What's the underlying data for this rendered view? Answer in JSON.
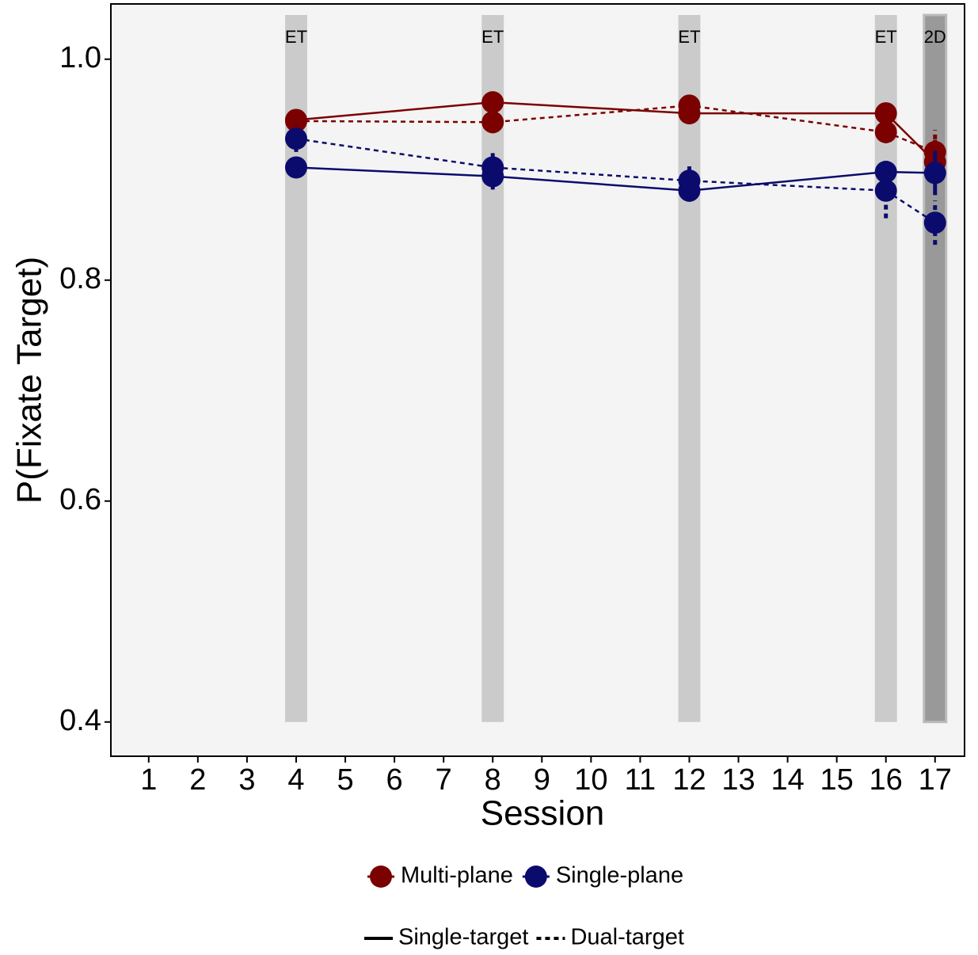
{
  "chart_data": {
    "type": "line",
    "x_label": "Session",
    "y_label": "P(Fixate Target)",
    "x": [
      4,
      8,
      12,
      16,
      17
    ],
    "xlim": [
      0.23,
      17.6
    ],
    "xticks": [
      1,
      2,
      3,
      4,
      5,
      6,
      7,
      8,
      9,
      10,
      11,
      12,
      13,
      14,
      15,
      16,
      17
    ],
    "ylim": [
      0.369,
      1.05
    ],
    "yticks": [
      0.4,
      0.6,
      0.8,
      {
        "value": 1,
        "label": "1.0"
      }
    ],
    "grid": false,
    "bands": [
      {
        "x": 4,
        "label": "ET",
        "color": "#cbcbcb"
      },
      {
        "x": 8,
        "label": "ET",
        "color": "#cbcbcb"
      },
      {
        "x": 12,
        "label": "ET",
        "color": "#cbcbcb"
      },
      {
        "x": 16,
        "label": "ET",
        "color": "#cbcbcb"
      },
      {
        "x": 17,
        "label": "2D",
        "color": "#999999"
      }
    ],
    "band_range": [
      0.4,
      1.04
    ],
    "color_legend": [
      {
        "name": "Multi-plane",
        "color": "#7b0000"
      },
      {
        "name": "Single-plane",
        "color": "#0b0b6e"
      }
    ],
    "linetype_legend": [
      {
        "name": "Single-target",
        "dash": "solid"
      },
      {
        "name": "Dual-target",
        "dash": "dashed"
      }
    ],
    "series": [
      {
        "group": "Multi-plane",
        "target": "Single-target",
        "color": "#7b0000",
        "dash": "solid",
        "values": [
          0.945,
          0.961,
          0.951,
          0.951,
          0.907
        ],
        "errors": [
          0.005,
          0.005,
          0.005,
          0.006,
          0.02
        ]
      },
      {
        "group": "Multi-plane",
        "target": "Dual-target",
        "color": "#7b0000",
        "dash": "dashed",
        "values": [
          0.944,
          0.943,
          0.958,
          0.934,
          0.916
        ],
        "errors": [
          0.005,
          0.01,
          0.005,
          0.01,
          0.02
        ]
      },
      {
        "group": "Single-plane",
        "target": "Single-target",
        "color": "#0b0b6e",
        "dash": "solid",
        "values": [
          0.902,
          0.894,
          0.881,
          0.898,
          0.897
        ],
        "errors": [
          0.005,
          0.012,
          0.01,
          0.01,
          0.02
        ]
      },
      {
        "group": "Single-plane",
        "target": "Dual-target",
        "color": "#0b0b6e",
        "dash": "dashed",
        "values": [
          0.928,
          0.902,
          0.89,
          0.881,
          0.852
        ],
        "errors": [
          0.012,
          0.015,
          0.015,
          0.025,
          0.02
        ]
      }
    ]
  }
}
